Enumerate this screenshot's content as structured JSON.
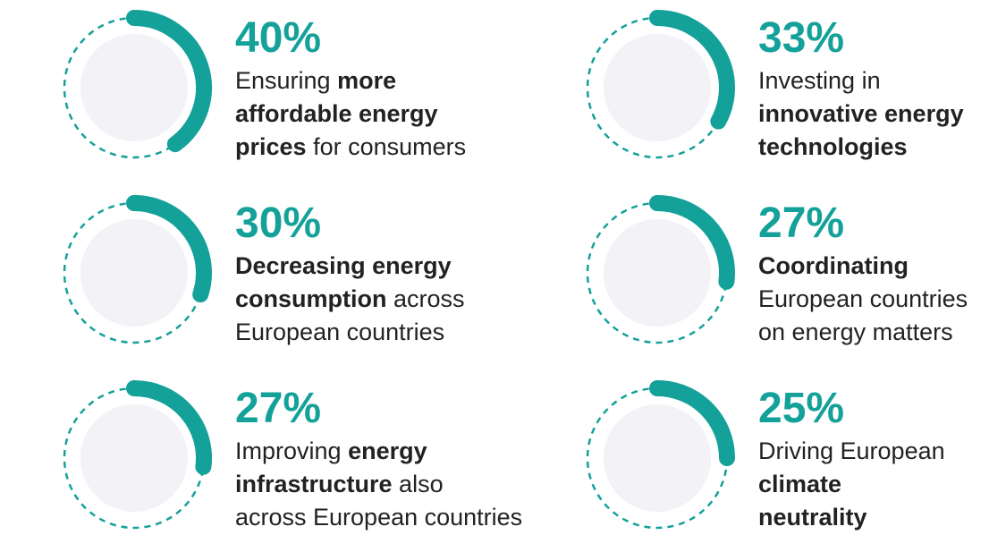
{
  "items": [
    {
      "value": 40,
      "label": "40%",
      "lines": [
        [
          {
            "text": "Ensuring ",
            "bold": false
          },
          {
            "text": "more",
            "bold": true
          }
        ],
        [
          {
            "text": "affordable energy",
            "bold": true
          }
        ],
        [
          {
            "text": "prices",
            "bold": true
          },
          {
            "text": " for consumers",
            "bold": false
          }
        ]
      ]
    },
    {
      "value": 33,
      "label": "33%",
      "lines": [
        [
          {
            "text": "Investing in",
            "bold": false
          }
        ],
        [
          {
            "text": "innovative energy",
            "bold": true
          }
        ],
        [
          {
            "text": "technologies",
            "bold": true
          }
        ]
      ]
    },
    {
      "value": 30,
      "label": "30%",
      "lines": [
        [
          {
            "text": "Decreasing energy",
            "bold": true
          }
        ],
        [
          {
            "text": "consumption",
            "bold": true
          },
          {
            "text": " across",
            "bold": false
          }
        ],
        [
          {
            "text": "European countries",
            "bold": false
          }
        ]
      ]
    },
    {
      "value": 27,
      "label": "27%",
      "lines": [
        [
          {
            "text": "Coordinating",
            "bold": true
          }
        ],
        [
          {
            "text": "European countries",
            "bold": false
          }
        ],
        [
          {
            "text": "on energy matters",
            "bold": false
          }
        ]
      ]
    },
    {
      "value": 27,
      "label": "27%",
      "lines": [
        [
          {
            "text": "Improving ",
            "bold": false
          },
          {
            "text": "energy",
            "bold": true
          }
        ],
        [
          {
            "text": "infrastructure",
            "bold": true
          },
          {
            "text": " also",
            "bold": false
          }
        ],
        [
          {
            "text": "across European countries",
            "bold": false
          }
        ]
      ]
    },
    {
      "value": 25,
      "label": "25%",
      "lines": [
        [
          {
            "text": "Driving European",
            "bold": false
          }
        ],
        [
          {
            "text": "climate",
            "bold": true
          }
        ],
        [
          {
            "text": "neutrality",
            "bold": true
          }
        ]
      ]
    }
  ]
}
